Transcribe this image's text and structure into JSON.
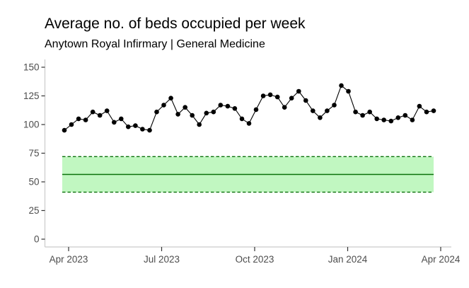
{
  "chart_data": {
    "type": "line",
    "title": "Average no. of beds occupied per week",
    "subtitle": "Anytown Royal Infirmary | General Medicine",
    "x_unit": "week",
    "x_tick_labels": [
      "Apr 2023",
      "Jul 2023",
      "Oct 2023",
      "Jan 2024",
      "Apr 2024"
    ],
    "y_tick_labels": [
      0,
      25,
      50,
      75,
      100,
      125,
      150
    ],
    "ylim": [
      0,
      155
    ],
    "legend": "none",
    "grid": "off",
    "n_points": 53,
    "values": [
      95,
      100,
      105,
      104,
      111,
      108,
      112,
      102,
      105,
      98,
      99,
      96,
      95,
      111,
      117,
      123,
      109,
      115,
      108,
      100,
      110,
      111,
      117,
      116,
      114,
      105,
      101,
      113,
      125,
      126,
      124,
      115,
      123,
      129,
      121,
      112,
      106,
      112,
      117,
      134,
      129,
      111,
      108,
      111,
      105,
      104,
      103,
      106,
      108,
      104,
      116,
      111,
      112
    ],
    "reference_band": {
      "upper": 72,
      "center": 56.5,
      "lower": 41
    },
    "colors": {
      "point": "#000000",
      "line": "#000000",
      "band_fill": "#c1f7c1",
      "band_line": "#0a720a",
      "axis_line": "#c9c9c9",
      "tick_mark": "#333333",
      "tick_label": "#4d4d4d",
      "title_text": "#000000"
    }
  }
}
